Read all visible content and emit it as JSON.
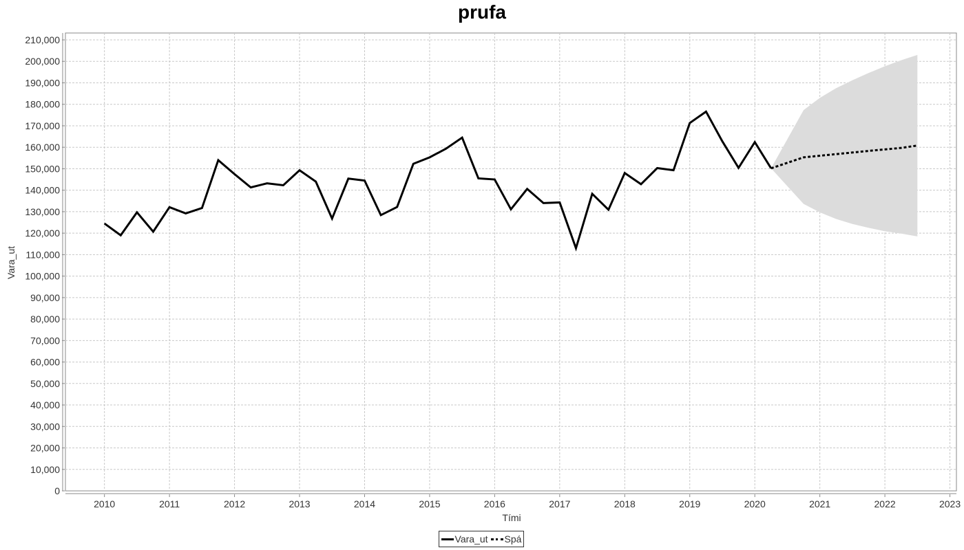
{
  "chart_data": {
    "type": "line",
    "title": "prufa",
    "xlabel": "Tími",
    "ylabel": "Vara_ut",
    "xlim": [
      2009.4,
      2023.1
    ],
    "ylim": [
      0,
      210000
    ],
    "x_ticks": [
      "2010",
      "2011",
      "2012",
      "2013",
      "2014",
      "2015",
      "2016",
      "2017",
      "2018",
      "2019",
      "2020",
      "2021",
      "2022",
      "2023"
    ],
    "y_ticks": [
      "0",
      "10,000",
      "20,000",
      "30,000",
      "40,000",
      "50,000",
      "60,000",
      "70,000",
      "80,000",
      "90,000",
      "100,000",
      "110,000",
      "120,000",
      "130,000",
      "140,000",
      "150,000",
      "160,000",
      "170,000",
      "180,000",
      "190,000",
      "200,000",
      "210,000"
    ],
    "grid": true,
    "legend_position": "bottom-center",
    "series": [
      {
        "name": "Vara_ut",
        "style": "solid",
        "color": "#000000",
        "x": [
          2010.0,
          2010.25,
          2010.5,
          2010.75,
          2011.0,
          2011.25,
          2011.5,
          2011.75,
          2012.0,
          2012.25,
          2012.5,
          2012.75,
          2013.0,
          2013.25,
          2013.5,
          2013.75,
          2014.0,
          2014.25,
          2014.5,
          2014.75,
          2015.0,
          2015.25,
          2015.5,
          2015.75,
          2016.0,
          2016.25,
          2016.5,
          2016.75,
          2017.0,
          2017.25,
          2017.5,
          2017.75,
          2018.0,
          2018.25,
          2018.5,
          2018.75,
          2019.0,
          2019.25,
          2019.5,
          2019.75,
          2020.0,
          2020.25
        ],
        "y": [
          124500,
          119000,
          129700,
          120700,
          132100,
          129200,
          131700,
          154000,
          147500,
          141300,
          143200,
          142300,
          149300,
          144000,
          126800,
          145400,
          144500,
          128400,
          132200,
          152300,
          155300,
          159300,
          164500,
          145500,
          145000,
          131100,
          140600,
          134000,
          134300,
          113000,
          138300,
          130900,
          148000,
          142800,
          150300,
          149300,
          171300,
          176600,
          162800,
          150400,
          162400,
          150200
        ]
      },
      {
        "name": "Spá",
        "style": "dotted",
        "color": "#000000",
        "x": [
          2020.25,
          2020.75,
          2021.25,
          2021.75,
          2022.25,
          2022.5
        ],
        "y": [
          150200,
          155300,
          156800,
          158300,
          159700,
          160800
        ]
      }
    ],
    "confidence_band": {
      "color": "#dcdcdc",
      "x": [
        2020.25,
        2020.75,
        2021.0,
        2021.25,
        2021.5,
        2021.75,
        2022.0,
        2022.25,
        2022.5
      ],
      "upper": [
        150200,
        177300,
        183000,
        187500,
        191200,
        194600,
        197700,
        200500,
        203000
      ],
      "lower": [
        150200,
        133600,
        129700,
        126600,
        124300,
        122500,
        120900,
        119800,
        118500
      ]
    }
  }
}
